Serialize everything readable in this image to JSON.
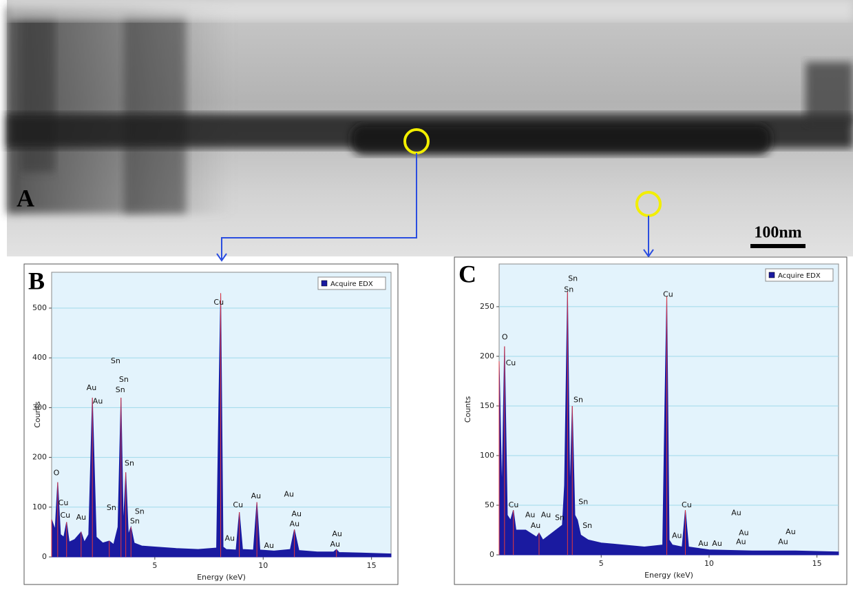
{
  "image_panel": {
    "label": "A",
    "scale_bar": "100nm"
  },
  "chart_data": [
    {
      "type": "area",
      "panel_label": "B",
      "x_label": "Energy (keV)",
      "y_label": "Counts",
      "x": [
        0.24,
        0.4,
        0.52,
        0.65,
        0.8,
        0.93,
        1.05,
        1.3,
        1.6,
        1.75,
        1.95,
        2.12,
        2.3,
        2.6,
        2.9,
        3.1,
        3.3,
        3.44,
        3.55,
        3.66,
        3.78,
        3.9,
        4.05,
        4.4,
        5,
        6,
        7,
        7.85,
        7.95,
        8.04,
        8.15,
        8.3,
        8.75,
        8.9,
        9.05,
        9.55,
        9.71,
        9.85,
        10.5,
        11.25,
        11.44,
        11.65,
        12.5,
        13.25,
        13.38,
        13.5,
        14.5,
        15.9
      ],
      "series": [
        {
          "name": "Acquire EDX",
          "color": "#1a1aa0",
          "values": [
            75,
            55,
            150,
            45,
            40,
            70,
            30,
            35,
            50,
            30,
            45,
            320,
            40,
            28,
            32,
            25,
            60,
            320,
            60,
            170,
            45,
            60,
            28,
            22,
            20,
            17,
            15,
            18,
            300,
            530,
            20,
            15,
            14,
            90,
            15,
            14,
            110,
            14,
            12,
            15,
            55,
            13,
            10,
            10,
            15,
            9,
            8,
            6
          ]
        }
      ],
      "xlim": [
        0.24,
        15.9
      ],
      "ylim": [
        0,
        572
      ],
      "xticks": [
        5,
        10,
        15
      ],
      "yticks": [
        0,
        100,
        200,
        300,
        400,
        500
      ],
      "grid": true,
      "legend": "top-right",
      "annotations": [
        {
          "text": "O",
          "x": 0.46,
          "y": 168
        },
        {
          "text": "Cu",
          "x": 0.78,
          "y": 108
        },
        {
          "text": "Cu",
          "x": 0.87,
          "y": 83
        },
        {
          "text": "Au",
          "x": 1.6,
          "y": 79
        },
        {
          "text": "Au",
          "x": 2.08,
          "y": 339
        },
        {
          "text": "Au",
          "x": 2.37,
          "y": 312
        },
        {
          "text": "Sn",
          "x": 3.0,
          "y": 98
        },
        {
          "text": "Sn",
          "x": 3.19,
          "y": 393
        },
        {
          "text": "Sn",
          "x": 3.57,
          "y": 356
        },
        {
          "text": "Sn",
          "x": 3.41,
          "y": 335
        },
        {
          "text": "Sn",
          "x": 3.83,
          "y": 188
        },
        {
          "text": "Sn",
          "x": 4.3,
          "y": 91
        },
        {
          "text": "Sn",
          "x": 4.08,
          "y": 71
        },
        {
          "text": "Cu",
          "x": 7.95,
          "y": 511
        },
        {
          "text": "Au",
          "x": 8.46,
          "y": 37
        },
        {
          "text": "Cu",
          "x": 8.84,
          "y": 104
        },
        {
          "text": "Au",
          "x": 9.67,
          "y": 122
        },
        {
          "text": "Au",
          "x": 10.27,
          "y": 22
        },
        {
          "text": "Au",
          "x": 11.19,
          "y": 125
        },
        {
          "text": "Au",
          "x": 11.54,
          "y": 86
        },
        {
          "text": "Au",
          "x": 11.45,
          "y": 66
        },
        {
          "text": "Au",
          "x": 13.41,
          "y": 46
        },
        {
          "text": "Au",
          "x": 13.32,
          "y": 25
        }
      ]
    },
    {
      "type": "area",
      "panel_label": "C",
      "x_label": "Energy (keV)",
      "y_label": "Counts",
      "x": [
        0.27,
        0.4,
        0.52,
        0.65,
        0.8,
        0.93,
        1.05,
        1.5,
        2.0,
        2.12,
        2.3,
        2.9,
        3.2,
        3.3,
        3.44,
        3.55,
        3.66,
        3.78,
        3.9,
        4.05,
        4.4,
        5,
        6,
        7,
        7.85,
        7.95,
        8.04,
        8.15,
        8.3,
        8.75,
        8.9,
        9.05,
        10,
        12,
        14,
        16
      ],
      "series": [
        {
          "name": "Acquire EDX",
          "color": "#1a1aa0",
          "values": [
            195,
            60,
            210,
            40,
            35,
            45,
            25,
            25,
            18,
            22,
            15,
            25,
            30,
            70,
            265,
            60,
            150,
            40,
            35,
            20,
            15,
            12,
            10,
            8,
            10,
            150,
            260,
            15,
            10,
            8,
            45,
            8,
            5,
            4,
            4,
            3
          ]
        }
      ],
      "xlim": [
        0.27,
        16.0
      ],
      "ylim": [
        0,
        293
      ],
      "xticks": [
        5,
        10,
        15
      ],
      "yticks": [
        0,
        50,
        100,
        150,
        200,
        250
      ],
      "grid": true,
      "legend": "top-right",
      "annotations": [
        {
          "text": "O",
          "x": 0.53,
          "y": 219
        },
        {
          "text": "Cu",
          "x": 0.81,
          "y": 193
        },
        {
          "text": "Cu",
          "x": 0.94,
          "y": 50
        },
        {
          "text": "Au",
          "x": 1.71,
          "y": 40
        },
        {
          "text": "Au",
          "x": 2.44,
          "y": 40
        },
        {
          "text": "Au",
          "x": 1.96,
          "y": 29
        },
        {
          "text": "Sn",
          "x": 3.08,
          "y": 37
        },
        {
          "text": "Sn",
          "x": 3.69,
          "y": 278
        },
        {
          "text": "Sn",
          "x": 3.5,
          "y": 267
        },
        {
          "text": "Sn",
          "x": 3.94,
          "y": 156
        },
        {
          "text": "Sn",
          "x": 4.17,
          "y": 53
        },
        {
          "text": "Sn",
          "x": 4.36,
          "y": 29
        },
        {
          "text": "Cu",
          "x": 8.1,
          "y": 262
        },
        {
          "text": "Au",
          "x": 8.51,
          "y": 19
        },
        {
          "text": "Cu",
          "x": 8.96,
          "y": 50
        },
        {
          "text": "Au",
          "x": 9.73,
          "y": 11
        },
        {
          "text": "Au",
          "x": 10.37,
          "y": 11
        },
        {
          "text": "Au",
          "x": 11.26,
          "y": 42
        },
        {
          "text": "Au",
          "x": 11.61,
          "y": 22
        },
        {
          "text": "Au",
          "x": 11.48,
          "y": 13
        },
        {
          "text": "Au",
          "x": 13.78,
          "y": 23
        },
        {
          "text": "Au",
          "x": 13.43,
          "y": 13
        }
      ]
    }
  ]
}
